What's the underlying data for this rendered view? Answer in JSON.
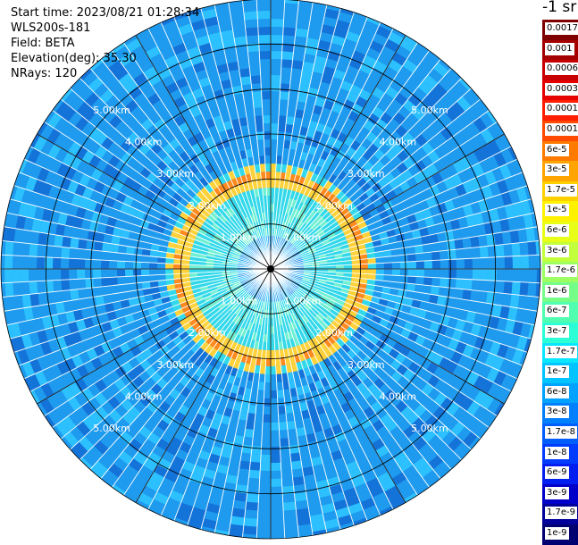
{
  "info": {
    "start_time": "Start time: 2023/08/21 01:28:34",
    "instrument": "WLS200s-181",
    "field": "Field: BETA",
    "elevation": "Elevation(deg): 35.30",
    "nrays": "NRays: 120"
  },
  "colorbar": {
    "unit_label": "-1 sr",
    "levels": [
      {
        "label": "0.0017",
        "color": "#7f0000"
      },
      {
        "label": "0.001",
        "color": "#a50000"
      },
      {
        "label": "0.0006",
        "color": "#c80000"
      },
      {
        "label": "0.0003",
        "color": "#e60000"
      },
      {
        "label": "0.00017",
        "color": "#ff1e00"
      },
      {
        "label": "0.0001",
        "color": "#ff4a00"
      },
      {
        "label": "6e-5",
        "color": "#ff7a00"
      },
      {
        "label": "3e-5",
        "color": "#ffa400"
      },
      {
        "label": "1.7e-5",
        "color": "#ffd000"
      },
      {
        "label": "1e-5",
        "color": "#fff200"
      },
      {
        "label": "6e-6",
        "color": "#e8ff18"
      },
      {
        "label": "3e-6",
        "color": "#c2ff3d"
      },
      {
        "label": "1.7e-6",
        "color": "#9cff62"
      },
      {
        "label": "1e-6",
        "color": "#76ff88"
      },
      {
        "label": "6e-7",
        "color": "#50ffb0"
      },
      {
        "label": "3e-7",
        "color": "#2cffd6"
      },
      {
        "label": "1.7e-7",
        "color": "#0ae6ff"
      },
      {
        "label": "1e-7",
        "color": "#00c4ff"
      },
      {
        "label": "6e-8",
        "color": "#00a2ff"
      },
      {
        "label": "3e-8",
        "color": "#0080ff"
      },
      {
        "label": "1.7e-8",
        "color": "#005eff"
      },
      {
        "label": "1e-8",
        "color": "#003cff"
      },
      {
        "label": "6e-9",
        "color": "#001ef0"
      },
      {
        "label": "3e-9",
        "color": "#0000c8"
      },
      {
        "label": "1.7e-9",
        "color": "#00009a"
      },
      {
        "label": "1e-9",
        "color": "#000070"
      }
    ]
  },
  "plot": {
    "rays": 120,
    "range_ring_labels": [
      "1.00km",
      "2.00km",
      "3.00km",
      "4.00km",
      "5.00km"
    ],
    "outer_range_km": 6.0,
    "colors": {
      "background_field": "#1e9aee",
      "field_dark": "#1473d8",
      "field_light": "#2cc0ff",
      "inner_field": "#33d9ea",
      "inner_light": "#6ff0d2",
      "ring_band": "#ff8a1e",
      "ring_edge": "#ffd23a",
      "grid": "#000000",
      "ray_gap": "#ffffff",
      "center_blue": "#1f8ee8"
    }
  }
}
